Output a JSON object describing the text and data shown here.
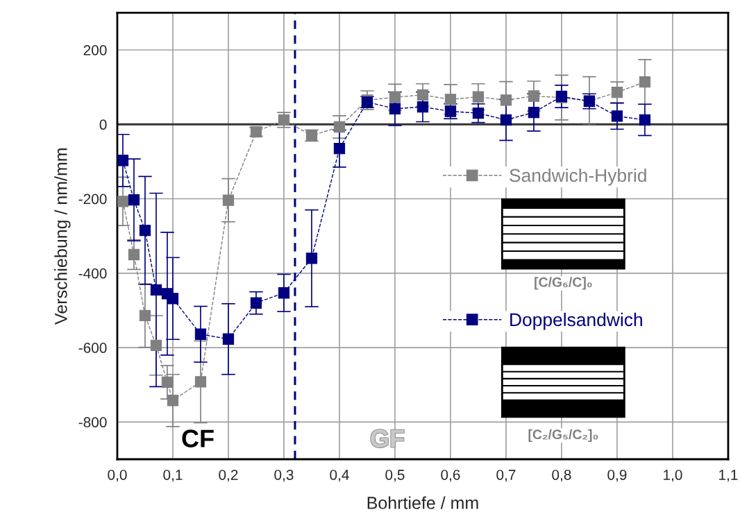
{
  "chart_data": {
    "type": "line",
    "xlabel": "Bohrtiefe / mm",
    "ylabel": "Verschiebung / nm/mm",
    "x": [
      0.01,
      0.03,
      0.05,
      0.07,
      0.09,
      0.1,
      0.15,
      0.2,
      0.25,
      0.3,
      0.35,
      0.4,
      0.45,
      0.5,
      0.55,
      0.6,
      0.65,
      0.7,
      0.75,
      0.8,
      0.85,
      0.9,
      0.95
    ],
    "series": [
      {
        "name": "Sandwich-Hybrid",
        "color": "#808080",
        "values": [
          -207,
          -350,
          -514,
          -594,
          -693,
          -742,
          -692,
          -204,
          -20,
          12,
          -30,
          -7,
          65,
          73,
          79,
          67,
          74,
          65,
          76,
          72,
          63,
          86,
          114
        ],
        "errors": [
          65,
          40,
          85,
          80,
          45,
          70,
          110,
          58,
          12,
          20,
          15,
          30,
          25,
          35,
          30,
          40,
          35,
          50,
          40,
          60,
          65,
          28,
          60
        ]
      },
      {
        "name": "Doppelsandwich",
        "color": "#000080",
        "values": [
          -97,
          -203,
          -285,
          -445,
          -455,
          -468,
          -564,
          -577,
          -480,
          -453,
          -360,
          -65,
          60,
          42,
          47,
          35,
          30,
          12,
          32,
          75,
          62,
          22,
          12
        ],
        "errors": [
          70,
          110,
          145,
          260,
          165,
          110,
          75,
          95,
          30,
          50,
          130,
          50,
          15,
          45,
          40,
          20,
          25,
          55,
          50,
          30,
          20,
          35,
          42
        ]
      }
    ],
    "xlim": [
      0,
      1.1
    ],
    "xticks": [
      {
        "value": 0,
        "label": "0,0"
      },
      {
        "value": 0.1,
        "label": "0,1"
      },
      {
        "value": 0.2,
        "label": "0,2"
      },
      {
        "value": 0.3,
        "label": "0,3"
      },
      {
        "value": 0.4,
        "label": "0,4"
      },
      {
        "value": 0.5,
        "label": "0,5"
      },
      {
        "value": 0.6,
        "label": "0,6"
      },
      {
        "value": 0.7,
        "label": "0,7"
      },
      {
        "value": 0.8,
        "label": "0,8"
      },
      {
        "value": 0.9,
        "label": "0,9"
      },
      {
        "value": 1.0,
        "label": "1,0"
      },
      {
        "value": 1.1,
        "label": "1,1"
      }
    ],
    "ylim": [
      -900,
      300
    ],
    "yticks": [
      -800,
      -600,
      -400,
      -200,
      0,
      200
    ],
    "ref_lines": [
      {
        "axis": "x",
        "value": 0.32,
        "color": "#000080",
        "line_style": "dashed"
      },
      {
        "axis": "y",
        "value": 0,
        "color": "#333333",
        "line_style": "solid"
      }
    ],
    "annotations": [
      "CF",
      "GF",
      "[C/G₆/C]₀",
      "[C₂/G₅/C₂]₀"
    ],
    "grid": true,
    "legend": "right",
    "marker": "square",
    "line_style": "dashed"
  }
}
